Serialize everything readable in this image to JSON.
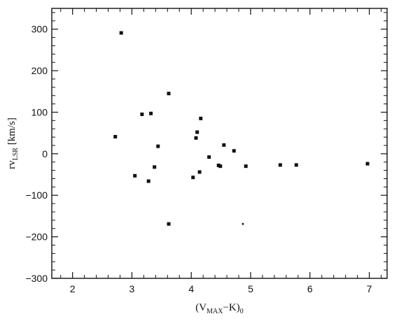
{
  "chart_data": {
    "type": "scatter",
    "title": "",
    "xlabel": {
      "prefix": "(V",
      "sub": "MAX",
      "mid": "−K)",
      "sub2": "0"
    },
    "ylabel": {
      "prefix": "rv",
      "sub": "LSR",
      "suffix": " [km/s]"
    },
    "xlim": [
      1.65,
      7.3
    ],
    "ylim": [
      -300,
      350
    ],
    "xticks": [
      2,
      3,
      4,
      5,
      6,
      7
    ],
    "yticks": [
      -300,
      -200,
      -100,
      0,
      100,
      200,
      300
    ],
    "xtick_labels": [
      "2",
      "3",
      "4",
      "5",
      "6",
      "7"
    ],
    "ytick_labels": [
      "−300",
      "−200",
      "−100",
      "0",
      "100",
      "200",
      "300"
    ],
    "grid": false,
    "legend": "none",
    "series": [
      {
        "marker": "square",
        "color": "#111111",
        "points": [
          [
            2.82,
            291
          ],
          [
            2.72,
            41
          ],
          [
            3.05,
            -53
          ],
          [
            3.17,
            95
          ],
          [
            3.28,
            -66
          ],
          [
            3.32,
            97
          ],
          [
            3.38,
            -32
          ],
          [
            3.44,
            18
          ],
          [
            3.62,
            145
          ],
          [
            3.62,
            -169
          ],
          [
            4.03,
            -57
          ],
          [
            4.08,
            38
          ],
          [
            4.1,
            52
          ],
          [
            4.16,
            85
          ],
          [
            4.14,
            -44
          ],
          [
            4.3,
            -8
          ],
          [
            4.46,
            -28
          ],
          [
            4.49,
            -30
          ],
          [
            4.55,
            21
          ],
          [
            4.72,
            7
          ],
          [
            4.92,
            -30
          ],
          [
            5.5,
            -27
          ],
          [
            5.77,
            -27
          ],
          [
            6.97,
            -24
          ]
        ]
      },
      {
        "marker": "dot",
        "color": "#111111",
        "points": [
          [
            4.87,
            -169
          ]
        ]
      }
    ]
  }
}
